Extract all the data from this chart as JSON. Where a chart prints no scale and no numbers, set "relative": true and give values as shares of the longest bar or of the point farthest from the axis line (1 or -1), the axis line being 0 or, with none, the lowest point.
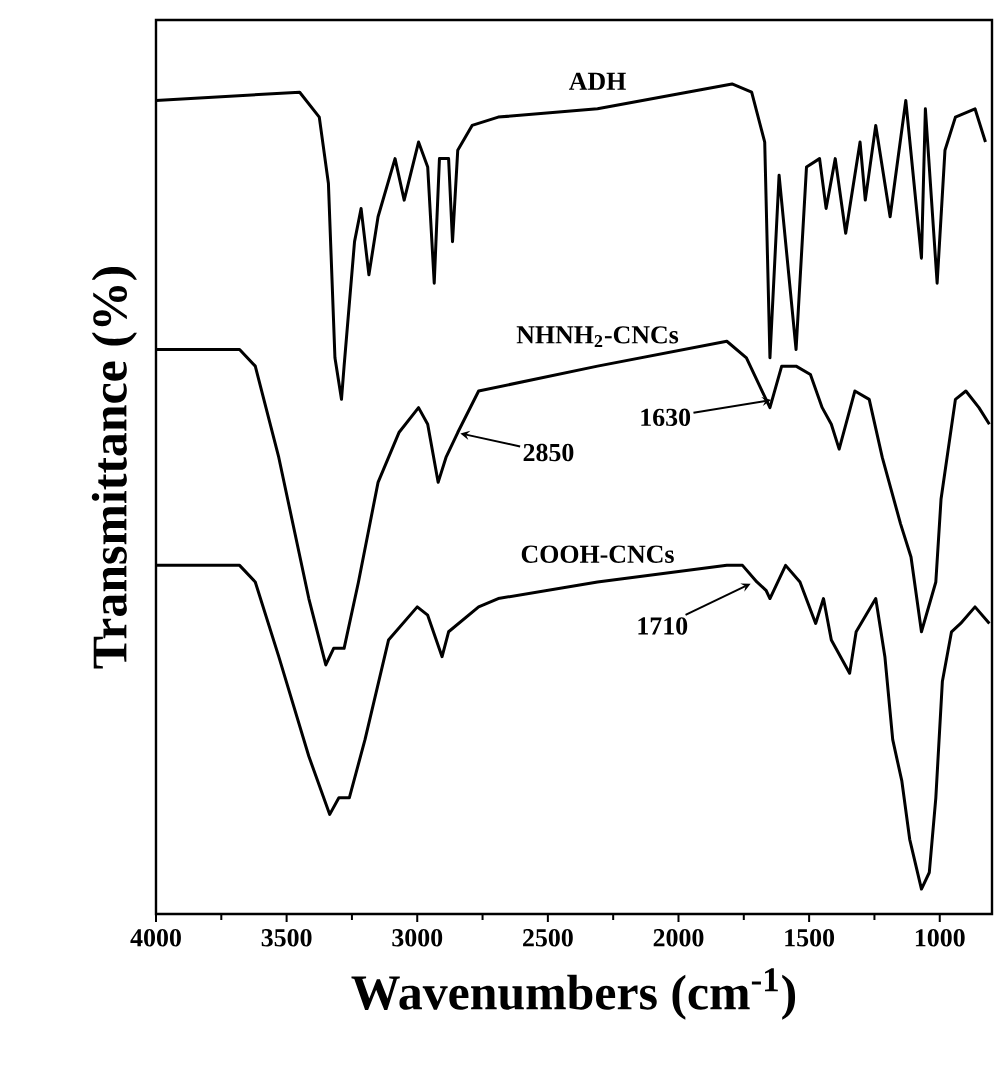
{
  "chart_data": {
    "type": "line",
    "relative": true,
    "xlabel": "Wavenumbers (cm$^{-1}$)",
    "ylabel": "Transmittance (%)",
    "xlim": [
      4000,
      800
    ],
    "xticks": [
      4000,
      3500,
      3000,
      2500,
      2000,
      1500,
      1000
    ],
    "series": [
      {
        "name": "ADH",
        "color": "#000000",
        "x": [
          4000,
          3450,
          3375,
          3340,
          3315,
          3290,
          3280,
          3240,
          3215,
          3185,
          3150,
          3085,
          3050,
          2995,
          2960,
          2935,
          2915,
          2880,
          2865,
          2845,
          2790,
          2690,
          2310,
          1795,
          1720,
          1670,
          1650,
          1615,
          1550,
          1510,
          1460,
          1435,
          1400,
          1360,
          1305,
          1285,
          1245,
          1190,
          1130,
          1070,
          1055,
          1010,
          980,
          940,
          865,
          825
        ],
        "values": [
          0.98,
          0.99,
          0.96,
          0.88,
          0.67,
          0.62,
          0.66,
          0.81,
          0.85,
          0.77,
          0.84,
          0.91,
          0.86,
          0.93,
          0.9,
          0.76,
          0.91,
          0.91,
          0.81,
          0.92,
          0.95,
          0.96,
          0.97,
          1.0,
          0.99,
          0.93,
          0.67,
          0.89,
          0.68,
          0.9,
          0.91,
          0.85,
          0.91,
          0.82,
          0.93,
          0.86,
          0.95,
          0.84,
          0.98,
          0.79,
          0.97,
          0.76,
          0.92,
          0.96,
          0.97,
          0.93
        ]
      },
      {
        "name": "NHNH$_{2}$-CNCs",
        "color": "#000000",
        "x": [
          4000,
          3680,
          3620,
          3530,
          3415,
          3350,
          3320,
          3280,
          3225,
          3150,
          3070,
          2995,
          2960,
          2920,
          2890,
          2845,
          2765,
          2310,
          1815,
          1740,
          1680,
          1650,
          1605,
          1550,
          1495,
          1450,
          1415,
          1385,
          1325,
          1270,
          1220,
          1150,
          1110,
          1070,
          1015,
          995,
          940,
          900,
          850,
          810
        ],
        "values": [
          0.68,
          0.68,
          0.66,
          0.55,
          0.38,
          0.3,
          0.32,
          0.32,
          0.4,
          0.52,
          0.58,
          0.61,
          0.59,
          0.52,
          0.55,
          0.58,
          0.63,
          0.66,
          0.69,
          0.67,
          0.63,
          0.61,
          0.66,
          0.66,
          0.65,
          0.61,
          0.59,
          0.56,
          0.63,
          0.62,
          0.55,
          0.47,
          0.43,
          0.34,
          0.4,
          0.5,
          0.62,
          0.63,
          0.61,
          0.59
        ]
      },
      {
        "name": "COOH-CNCs",
        "color": "#000000",
        "x": [
          4000,
          3680,
          3620,
          3530,
          3415,
          3335,
          3300,
          3260,
          3200,
          3110,
          3000,
          2960,
          2905,
          2880,
          2765,
          2690,
          2310,
          1815,
          1755,
          1700,
          1665,
          1650,
          1590,
          1535,
          1475,
          1445,
          1415,
          1345,
          1320,
          1245,
          1210,
          1180,
          1145,
          1115,
          1070,
          1040,
          1015,
          990,
          955,
          920,
          865,
          810
        ],
        "values": [
          0.42,
          0.42,
          0.4,
          0.31,
          0.19,
          0.12,
          0.14,
          0.14,
          0.21,
          0.33,
          0.37,
          0.36,
          0.31,
          0.34,
          0.37,
          0.38,
          0.4,
          0.42,
          0.42,
          0.4,
          0.39,
          0.38,
          0.42,
          0.4,
          0.35,
          0.38,
          0.33,
          0.29,
          0.34,
          0.38,
          0.31,
          0.21,
          0.16,
          0.09,
          0.03,
          0.05,
          0.14,
          0.28,
          0.34,
          0.35,
          0.37,
          0.35
        ]
      }
    ],
    "annotations": [
      {
        "text": "2850",
        "x": 2850,
        "y": 0.58
      },
      {
        "text": "1630",
        "x": 1630,
        "y": 0.62
      },
      {
        "text": "1710",
        "x": 1710,
        "y": 0.4
      }
    ]
  }
}
